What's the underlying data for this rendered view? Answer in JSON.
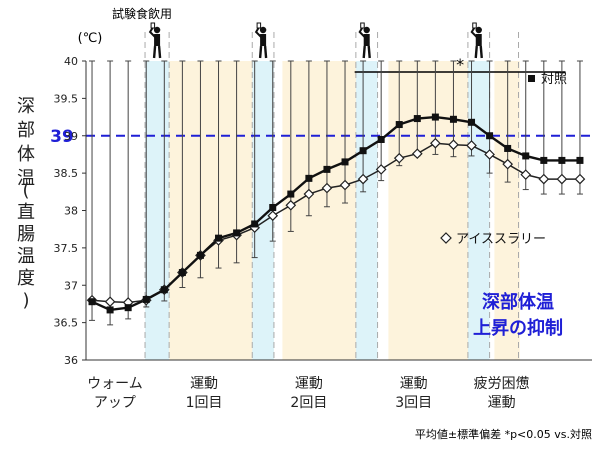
{
  "chart_data": {
    "type": "line",
    "top_label": "試験食飲用",
    "y_unit": "(℃)",
    "ylabel_main": "深部体温",
    "ylabel_paren": "(直腸温度)",
    "ylim": [
      36,
      40
    ],
    "y_ticks": [
      "36",
      "36.5",
      "37",
      "37.5",
      "38",
      "38.5",
      "39",
      "39.5",
      "40"
    ],
    "reference_line": {
      "value": 39,
      "label": "39",
      "color": "#1f1fd6"
    },
    "significance_mark": "*",
    "significance_span": [
      21.8,
      39.3
    ],
    "x_range": [
      -0.5,
      41.5
    ],
    "phases": [
      {
        "label_lines": [
          "ウォーム",
          "アップ"
        ],
        "center": 1.9
      },
      {
        "label_lines": [
          "運動",
          "1回目"
        ],
        "center": 9.3
      },
      {
        "label_lines": [
          "運動",
          "2回目"
        ],
        "center": 18.0
      },
      {
        "label_lines": [
          "運動",
          "3回目"
        ],
        "center": 26.7
      },
      {
        "label_lines": [
          "疲労困憊",
          "運動"
        ],
        "center": 34.0
      }
    ],
    "exercise_bands": [
      [
        6.4,
        14.4
      ],
      [
        15.8,
        23.2
      ],
      [
        24.6,
        31.9
      ],
      [
        33.4,
        35.5
      ]
    ],
    "drink_bands": [
      [
        4.4,
        6.4
      ],
      [
        13.3,
        15.1
      ],
      [
        21.9,
        23.7
      ],
      [
        31.2,
        33.0
      ]
    ],
    "drink_times": [
      5.4,
      14.2,
      22.8,
      32.1
    ],
    "dashed_lines": [
      4.4,
      6.4,
      13.3,
      15.1,
      21.9,
      23.7,
      31.2,
      33.0,
      35.4
    ],
    "series": [
      {
        "name": "対照",
        "marker": "square",
        "x": [
          0,
          1.5,
          3,
          4.5,
          6,
          7.5,
          9,
          10.5,
          12,
          13.5,
          15,
          16.5,
          18,
          19.5,
          21,
          22.5,
          24,
          25.5,
          27,
          28.5,
          30,
          31.5,
          33,
          34.5,
          36,
          37.5,
          39,
          40.5
        ],
        "values": [
          36.78,
          36.67,
          36.7,
          36.81,
          36.94,
          37.17,
          37.4,
          37.63,
          37.7,
          37.82,
          38.04,
          38.22,
          38.43,
          38.55,
          38.65,
          38.8,
          38.95,
          39.15,
          39.23,
          39.25,
          39.22,
          39.18,
          39.0,
          38.83,
          38.73,
          38.67,
          38.67,
          38.67
        ],
        "errors": [
          0.25,
          0.2,
          0.15,
          0.1,
          0.15,
          0.2,
          0.3,
          0.4,
          0.4,
          0.45,
          0.45,
          0.5,
          0.5,
          0.5,
          0.55,
          0.55,
          0.55,
          0.55,
          0.5,
          0.5,
          0.5,
          0.45,
          0.5,
          0.45,
          0.45,
          0.45,
          0.45,
          0.45
        ]
      },
      {
        "name": "アイススラリー",
        "marker": "diamond",
        "x": [
          0,
          1.5,
          3,
          4.5,
          6,
          7.5,
          9,
          10.5,
          12,
          13.5,
          15,
          16.5,
          18,
          19.5,
          21,
          22.5,
          24,
          25.5,
          27,
          28.5,
          30,
          31.5,
          33,
          34.5,
          36,
          37.5,
          39,
          40.5
        ],
        "values": [
          36.8,
          36.78,
          36.77,
          36.8,
          36.94,
          37.17,
          37.4,
          37.6,
          37.67,
          37.77,
          37.93,
          38.07,
          38.22,
          38.3,
          38.34,
          38.42,
          38.55,
          38.7,
          38.76,
          38.9,
          38.88,
          38.87,
          38.75,
          38.62,
          38.48,
          38.42,
          38.42,
          38.42
        ]
      }
    ]
  },
  "annotation": {
    "lines": [
      "深部体温",
      "上昇の抑制"
    ],
    "color": "#1f1fd6"
  },
  "footnote": "平均値±標準偏差 *p<0.05 vs.対照"
}
